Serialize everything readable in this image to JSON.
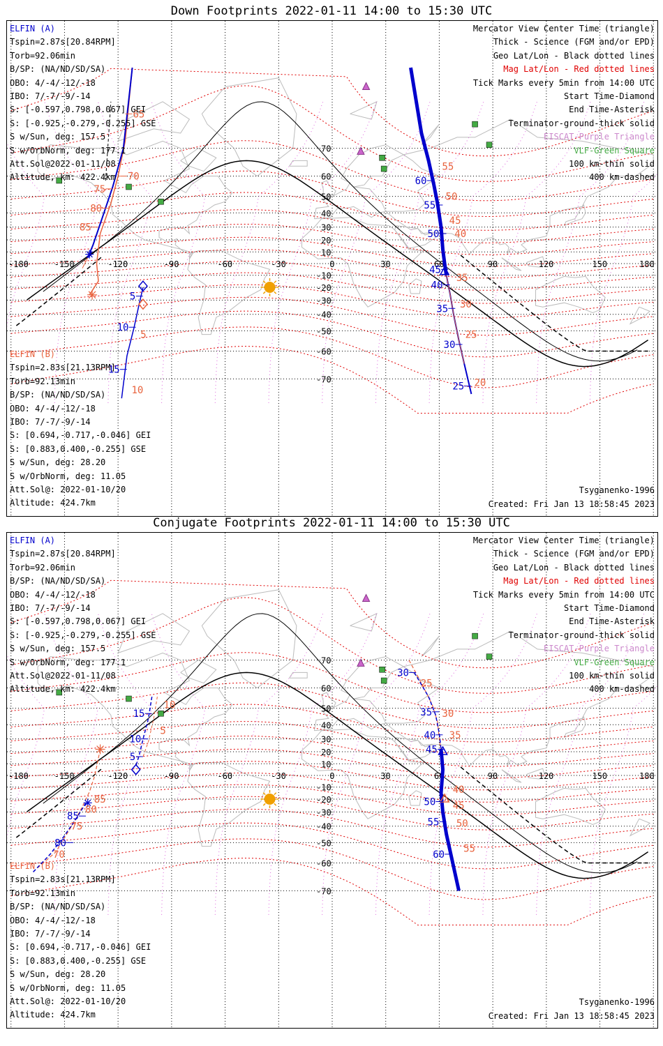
{
  "panels": [
    {
      "title": "Down Footprints 2022-01-11 14:00 to 15:30 UTC",
      "elfin_a": {
        "name": "ELFIN (A)",
        "lines": [
          "Tspin=2.87s[20.84RPM]",
          "Torb=92.06min",
          "B/SP: (NA/ND/SD/SA)",
          "OBO: 4/-4/-12/-18",
          "IBO: 7/-7/-9/-14",
          "S: [-0.597,0.798,0.067] GEI",
          "S: [-0.925,-0.279,-0.255] GSE",
          "S w/Sun, deg: 157.5",
          "S w/OrbNorm, deg: 177.1",
          "Att.Sol@2022-01-11/08",
          "Altitude, km: 422.4km"
        ]
      },
      "elfin_b": {
        "name": "ELFIN (B)",
        "lines": [
          "Tspin=2.83s[21.13RPM]",
          "Torb=92.13min",
          "B/SP: (NA/ND/SD/SA)",
          "OBO: 4/-4/-12/-18",
          "IBO: 7/-7/-9/-14",
          "S: [0.694,-0.717,-0.046] GEI",
          "S: [0.883,0.400,-0.255] GSE",
          "S w/Sun, deg: 28.20",
          "S w/OrbNorm, deg: 11.05",
          "Att.Sol@: 2022-01-10/20",
          "Altitude: 424.7km"
        ]
      },
      "footer_right": [
        "Tsyganenko-1996",
        "Created: Fri Jan 13 18:58:45 2023"
      ],
      "a_ticks": [
        {
          "label": "65",
          "lon": -114,
          "lat": 78,
          "side": "r"
        },
        {
          "label": "70",
          "lon": -117,
          "lat": 60,
          "side": "r"
        },
        {
          "label": "75",
          "lon": -125,
          "lat": 54,
          "side": "l"
        },
        {
          "label": "80",
          "lon": -127,
          "lat": 43,
          "side": "l"
        },
        {
          "label": "85",
          "lon": -133,
          "lat": 30,
          "side": "l"
        }
      ],
      "a_ticks_r": [
        {
          "label": "55",
          "lon": 57,
          "lat": 63,
          "side": "l"
        },
        {
          "label": "60",
          "lon": 55,
          "lat": 58,
          "side": "l"
        },
        {
          "label": "55",
          "lon": 60,
          "lat": 45,
          "side": "l"
        },
        {
          "label": "50",
          "lon": 62,
          "lat": 25,
          "side": "l"
        },
        {
          "label": "45",
          "lon": 63,
          "lat": -5,
          "side": "l"
        },
        {
          "label": "40",
          "lon": 64,
          "lat": -18,
          "side": "l"
        },
        {
          "label": "35",
          "lon": 67,
          "lat": -36,
          "side": "l"
        },
        {
          "label": "30",
          "lon": 71,
          "lat": -57,
          "side": "l"
        },
        {
          "label": "25",
          "lon": 76,
          "lat": -72,
          "side": "l"
        }
      ],
      "b_ticks": [
        {
          "label": "5",
          "lon": -108,
          "lat": -27,
          "side": "l"
        },
        {
          "label": "10",
          "lon": -112,
          "lat": -48,
          "side": "l"
        },
        {
          "label": "15",
          "lon": -117,
          "lat": -67,
          "side": "l"
        }
      ],
      "b_ticks_orange": [
        {
          "label": "65",
          "lon": -118,
          "lat": 79
        },
        {
          "label": "70",
          "lon": -119,
          "lat": 66
        },
        {
          "label": "75",
          "lon": -122,
          "lat": 52
        },
        {
          "label": "80",
          "lon": -126,
          "lat": 36
        },
        {
          "label": "85",
          "lon": -130,
          "lat": 12
        },
        {
          "label": "5",
          "lon": -109,
          "lat": -52
        },
        {
          "label": "10",
          "lon": -114,
          "lat": -73
        },
        {
          "label": "55",
          "lon": 60,
          "lat": 64
        },
        {
          "label": "50",
          "lon": 62,
          "lat": 50
        },
        {
          "label": "45",
          "lon": 64,
          "lat": 35
        },
        {
          "label": "40",
          "lon": 67,
          "lat": 25
        },
        {
          "label": "35",
          "lon": 68,
          "lat": -12
        },
        {
          "label": "30",
          "lon": 70,
          "lat": -33
        },
        {
          "label": "25",
          "lon": 73,
          "lat": -52
        },
        {
          "label": "20",
          "lon": 78,
          "lat": -71
        }
      ]
    },
    {
      "title": "Conjugate Footprints 2022-01-11 14:00 to 15:30 UTC",
      "elfin_a": {
        "name": "ELFIN (A)",
        "lines": [
          "Tspin=2.87s[20.84RPM]",
          "Torb=92.06min",
          "B/SP: (NA/ND/SD/SA)",
          "OBO: 4/-4/-12/-18",
          "IBO: 7/-7/-9/-14",
          "S: [-0.597,0.798,0.067] GEI",
          "S: [-0.925,-0.279,-0.255] GSE",
          "S w/Sun, deg: 157.5",
          "S w/OrbNorm, deg: 177.1",
          "Att.Sol@2022-01-11/08",
          "Altitude, km: 422.4km"
        ]
      },
      "elfin_b": {
        "name": "ELFIN (B)",
        "lines": [
          "Tspin=2.83s[21.13RPM]",
          "Torb=92.13min",
          "B/SP: (NA/ND/SD/SA)",
          "OBO: 4/-4/-12/-18",
          "IBO: 7/-7/-9/-14",
          "S: [0.694,-0.717,-0.046] GEI",
          "S: [0.883,0.400,-0.255] GSE",
          "S w/Sun, deg: 28.20",
          "S w/OrbNorm, deg: 11.05",
          "Att.Sol@: 2022-01-10/20",
          "Altitude: 424.7km"
        ]
      },
      "footer_right": [
        "Tsyganenko-1996",
        "Created: Fri Jan 13 18:58:45 2023"
      ],
      "a_ticks": [
        {
          "label": "15",
          "lon": -103,
          "lat": 47,
          "side": "l"
        },
        {
          "label": "10",
          "lon": -105,
          "lat": 30,
          "side": "l"
        },
        {
          "label": "5",
          "lon": -108,
          "lat": 16,
          "side": "l"
        },
        {
          "label": "85",
          "lon": -140,
          "lat": -33,
          "side": "l"
        },
        {
          "label": "80",
          "lon": -147,
          "lat": -50,
          "side": "l"
        }
      ],
      "a_ticks_r": [
        {
          "label": "30",
          "lon": 45,
          "lat": 66,
          "side": "l"
        },
        {
          "label": "35",
          "lon": 58,
          "lat": 48,
          "side": "l"
        },
        {
          "label": "40",
          "lon": 60,
          "lat": 33,
          "side": "l"
        },
        {
          "label": "45",
          "lon": 61,
          "lat": 22,
          "side": "l"
        },
        {
          "label": "50",
          "lon": 60,
          "lat": -22,
          "side": "l"
        },
        {
          "label": "55",
          "lon": 62,
          "lat": -37,
          "side": "l"
        },
        {
          "label": "60",
          "lon": 65,
          "lat": -56,
          "side": "l"
        }
      ],
      "b_ticks": [],
      "b_ticks_orange": [
        {
          "label": "10",
          "lon": -96,
          "lat": 52
        },
        {
          "label": "5",
          "lon": -98,
          "lat": 36
        },
        {
          "label": "85",
          "lon": -135,
          "lat": -20
        },
        {
          "label": "80",
          "lon": -140,
          "lat": -28
        },
        {
          "label": "75",
          "lon": -148,
          "lat": -40
        },
        {
          "label": "70",
          "lon": -158,
          "lat": -56
        },
        {
          "label": "25",
          "lon": 48,
          "lat": 62
        },
        {
          "label": "30",
          "lon": 60,
          "lat": 47
        },
        {
          "label": "35",
          "lon": 64,
          "lat": 33
        },
        {
          "label": "40",
          "lon": 66,
          "lat": -12
        },
        {
          "label": "45",
          "lon": 66,
          "lat": -25
        },
        {
          "label": "50",
          "lon": 68,
          "lat": -38
        },
        {
          "label": "55",
          "lon": 72,
          "lat": -53
        }
      ]
    }
  ],
  "legend": [
    {
      "text": "Mercator View Center Time (triangle)",
      "color": "#000000"
    },
    {
      "text": "Thick - Science (FGM and/or EPD)",
      "color": "#000000"
    },
    {
      "text": "Geo Lat/Lon - Black dotted lines",
      "color": "#000000"
    },
    {
      "text": "Mag Lat/Lon - Red dotted lines",
      "color": "#e00000"
    },
    {
      "text": "Tick Marks every 5min from 14:00 UTC",
      "color": "#000000"
    },
    {
      "text": "Start Time-Diamond",
      "color": "#000000"
    },
    {
      "text": "End Time-Asterisk",
      "color": "#000000"
    },
    {
      "text": "Terminator-ground-thick solid",
      "color": "#000000"
    },
    {
      "text": "EISCAT-Purple Triangle",
      "color": "#cc88cc"
    },
    {
      "text": "VLF-Green Square",
      "color": "#44aa44"
    },
    {
      "text": "100 km-thin solid",
      "color": "#000000"
    },
    {
      "text": "400 km-dashed",
      "color": "#000000"
    }
  ],
  "lon_labels": [
    "-180",
    "-150",
    "-120",
    "-90",
    "-60",
    "-30",
    "0",
    "30",
    "60",
    "90",
    "120",
    "150",
    "180"
  ],
  "lat_labels": [
    "70",
    "60",
    "50",
    "40",
    "30",
    "20",
    "10",
    "-10",
    "-20",
    "-30",
    "-40",
    "-50",
    "-60",
    "-70"
  ],
  "colors": {
    "elfin_a": "#0000cc",
    "elfin_b": "#e8623c",
    "mag_grid": "#e00000",
    "geo_grid": "#000000",
    "eiscat": "#cc66cc",
    "vlf": "#44aa44",
    "sun": "#f0a000",
    "coast": "#bbbbbb"
  }
}
